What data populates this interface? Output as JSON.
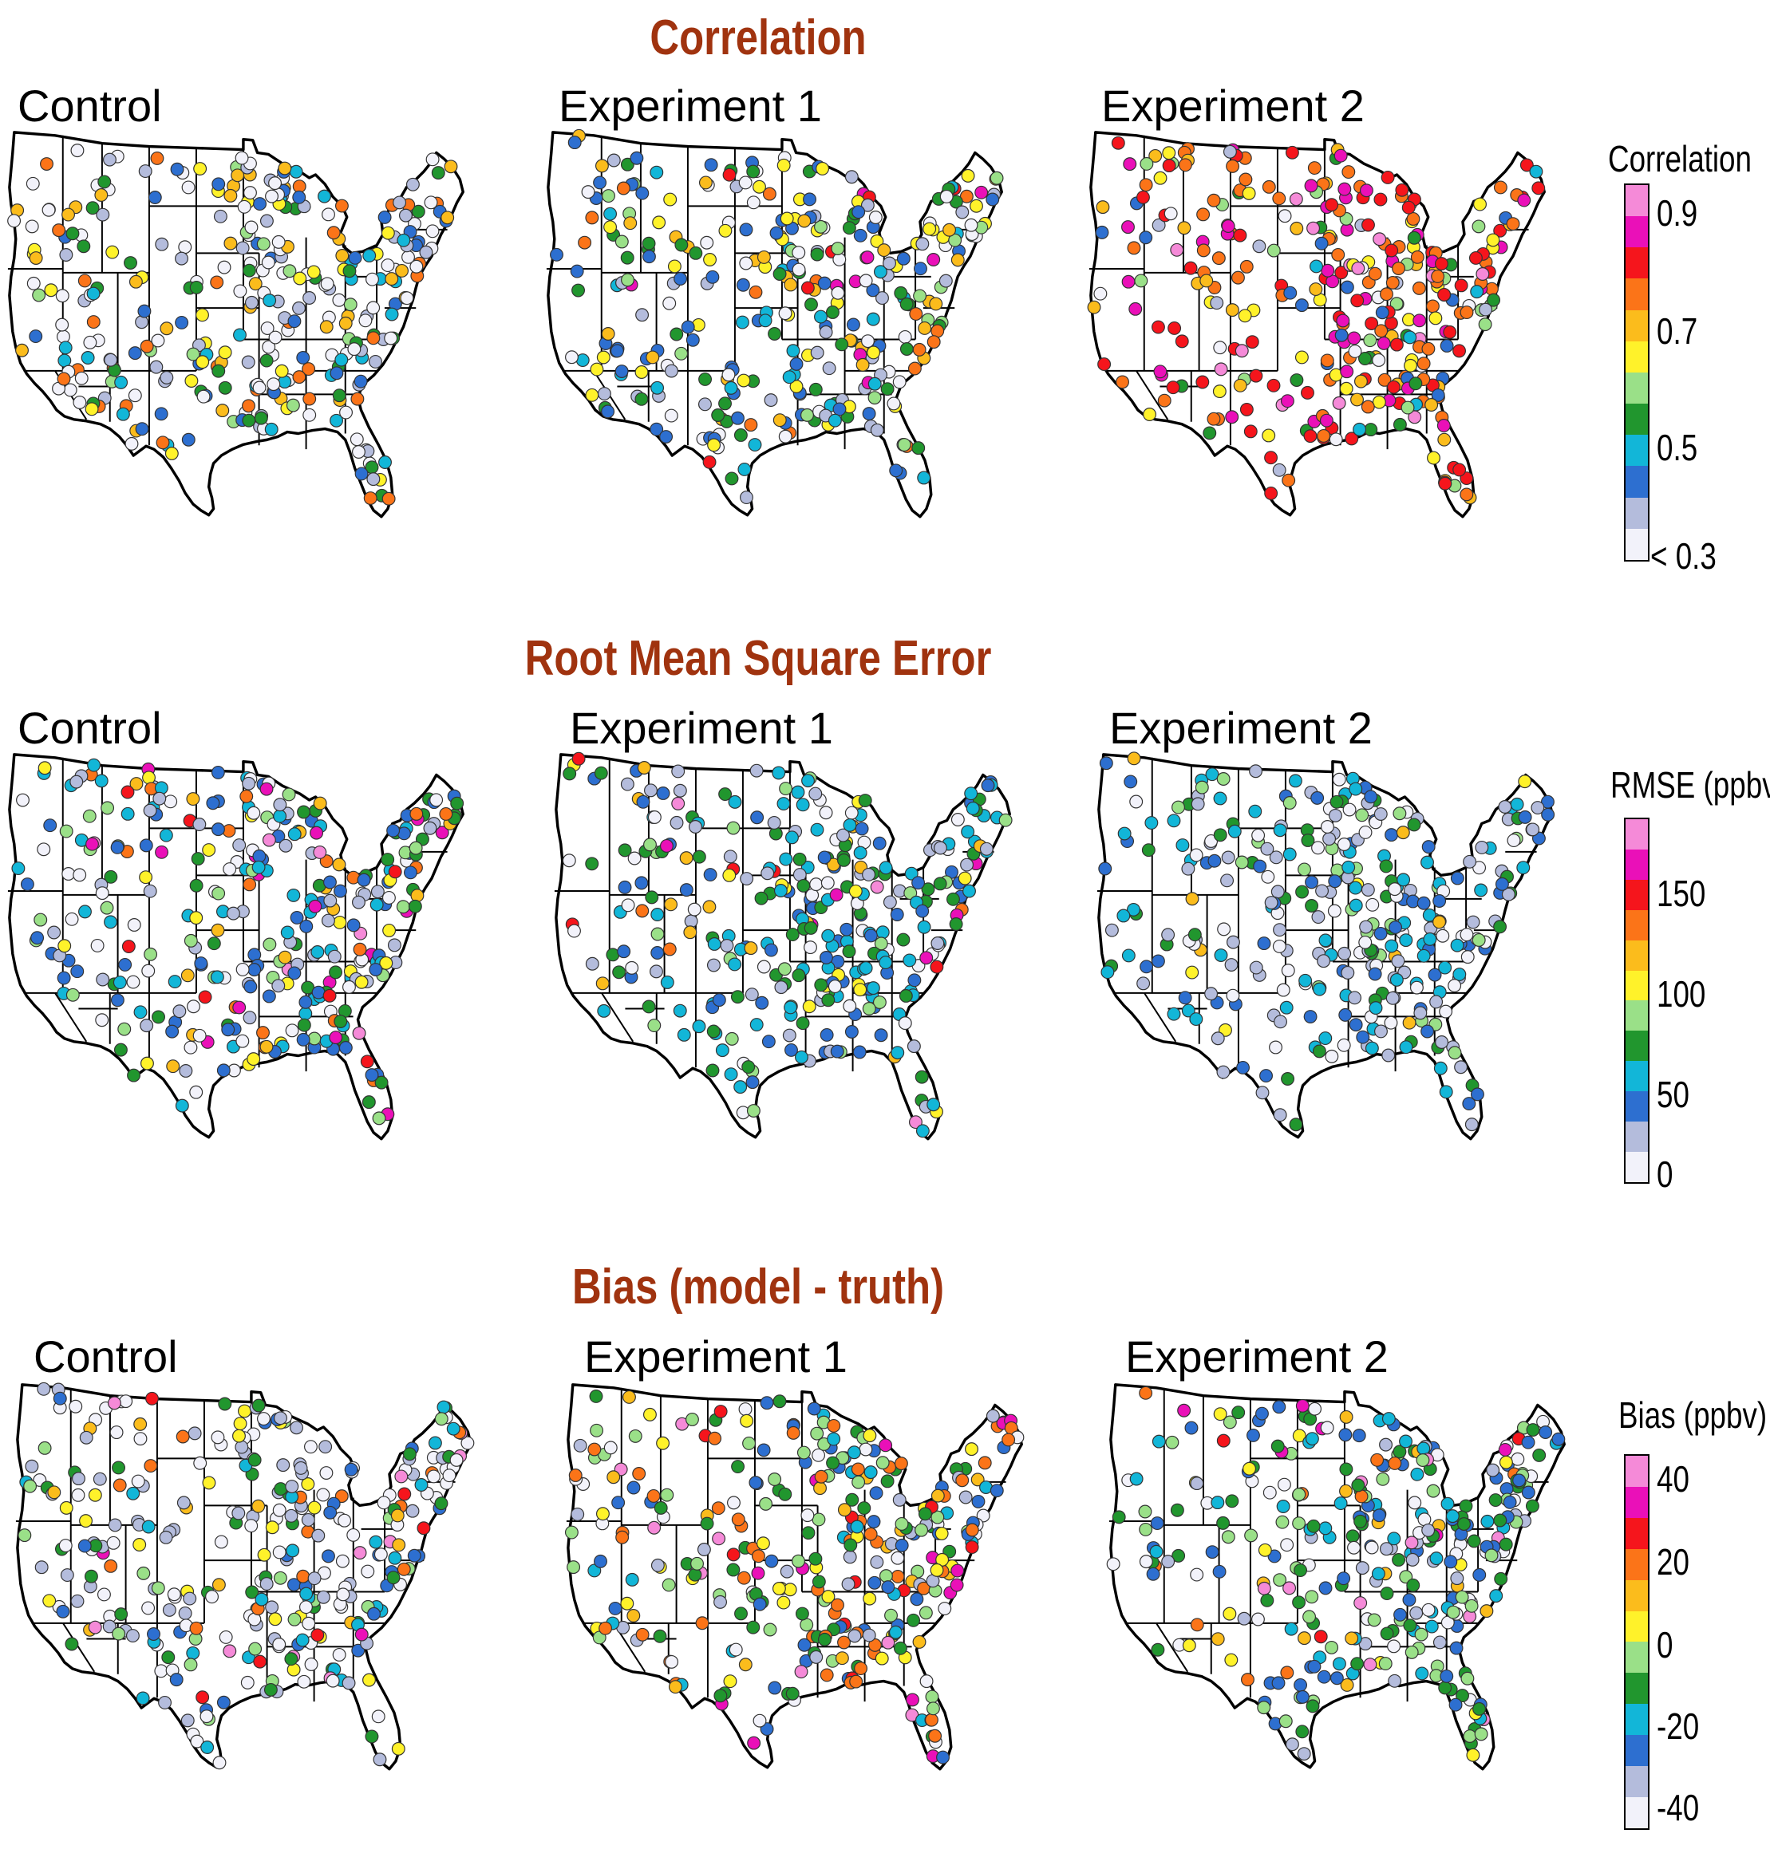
{
  "sections": [
    {
      "title": "Correlation",
      "panels": [
        "Control",
        "Experiment 1",
        "Experiment 2"
      ],
      "colorbar": {
        "title": "Correlation",
        "ticks": [
          "0.9",
          "0.7",
          "0.5",
          "< 0.3"
        ],
        "colors": [
          "#f2f2fa",
          "#b4bcdc",
          "#2d6fd0",
          "#12b6d8",
          "#21962e",
          "#9ae088",
          "#fff22a",
          "#fbbc1c",
          "#fb7418",
          "#f5151c",
          "#ea10b8",
          "#f58ad8"
        ]
      },
      "station_color_weights": [
        [
          18,
          10,
          10,
          6,
          7,
          3,
          5,
          6,
          7,
          0,
          0,
          0
        ],
        [
          10,
          10,
          14,
          8,
          12,
          8,
          10,
          8,
          4,
          2,
          3,
          0
        ],
        [
          2,
          2,
          4,
          3,
          3,
          5,
          6,
          8,
          20,
          18,
          10,
          3
        ]
      ]
    },
    {
      "title": "Root Mean Square Error",
      "panels": [
        "Control",
        "Experiment 1",
        "Experiment 2"
      ],
      "colorbar": {
        "title": "RMSE (ppbv)",
        "ticks": [
          "150",
          "100",
          "50",
          "0"
        ],
        "colors": [
          "#f2f2fa",
          "#b4bcdc",
          "#2d6fd0",
          "#12b6d8",
          "#21962e",
          "#9ae088",
          "#fff22a",
          "#fbbc1c",
          "#fb7418",
          "#f5151c",
          "#ea10b8",
          "#f58ad8"
        ]
      },
      "station_color_weights": [
        [
          8,
          10,
          14,
          12,
          10,
          6,
          4,
          3,
          3,
          2,
          2,
          1
        ],
        [
          8,
          8,
          12,
          14,
          12,
          6,
          3,
          3,
          2,
          1,
          2,
          1
        ],
        [
          14,
          16,
          16,
          12,
          10,
          6,
          1,
          1,
          0,
          0,
          0,
          0
        ]
      ]
    },
    {
      "title": "Bias (model - truth)",
      "panels": [
        "Control",
        "Experiment 1",
        "Experiment 2"
      ],
      "colorbar": {
        "title": "Bias (ppbv)",
        "ticks": [
          "40",
          "20",
          "0",
          "-20",
          "-40"
        ],
        "colors": [
          "#f2f2fa",
          "#b4bcdc",
          "#2d6fd0",
          "#12b6d8",
          "#21962e",
          "#9ae088",
          "#fff22a",
          "#fbbc1c",
          "#fb7418",
          "#f5151c",
          "#ea10b8",
          "#f58ad8"
        ]
      },
      "station_color_weights": [
        [
          20,
          16,
          6,
          5,
          8,
          6,
          5,
          3,
          3,
          1,
          1,
          2
        ],
        [
          6,
          6,
          8,
          6,
          10,
          10,
          8,
          6,
          10,
          2,
          3,
          3
        ],
        [
          8,
          8,
          14,
          10,
          14,
          10,
          4,
          3,
          2,
          1,
          1,
          2
        ]
      ]
    }
  ]
}
